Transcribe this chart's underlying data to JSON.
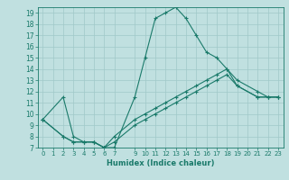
{
  "xlabel": "Humidex (Indice chaleur)",
  "bg_color": "#c0e0e0",
  "line_color": "#1a7a6a",
  "grid_color": "#a0c8c8",
  "xticks": [
    0,
    1,
    2,
    3,
    4,
    5,
    6,
    7,
    9,
    10,
    11,
    12,
    13,
    14,
    15,
    16,
    17,
    18,
    19,
    20,
    21,
    22,
    23
  ],
  "yticks": [
    7,
    8,
    9,
    10,
    11,
    12,
    13,
    14,
    15,
    16,
    17,
    18,
    19
  ],
  "xlim": [
    -0.5,
    23.5
  ],
  "ylim": [
    7,
    19.5
  ],
  "series": [
    {
      "x": [
        0,
        2,
        3,
        4,
        5,
        6,
        7,
        9,
        10,
        11,
        12,
        13,
        14,
        15,
        16,
        17,
        18,
        19,
        21,
        22,
        23
      ],
      "y": [
        9.5,
        11.5,
        8.0,
        7.5,
        7.5,
        7.0,
        7.0,
        11.5,
        15.0,
        18.5,
        19.0,
        19.5,
        18.5,
        17.0,
        15.5,
        15.0,
        14.0,
        12.5,
        11.5,
        11.5,
        11.5
      ]
    },
    {
      "x": [
        0,
        2,
        3,
        4,
        5,
        6,
        7,
        9,
        10,
        11,
        12,
        13,
        14,
        15,
        16,
        17,
        18,
        19,
        21,
        22,
        23
      ],
      "y": [
        9.5,
        8.0,
        7.5,
        7.5,
        7.5,
        7.0,
        8.0,
        9.5,
        10.0,
        10.5,
        11.0,
        11.5,
        12.0,
        12.5,
        13.0,
        13.5,
        14.0,
        13.0,
        12.0,
        11.5,
        11.5
      ]
    },
    {
      "x": [
        0,
        2,
        3,
        4,
        5,
        6,
        7,
        9,
        10,
        11,
        12,
        13,
        14,
        15,
        16,
        17,
        18,
        19,
        21,
        22,
        23
      ],
      "y": [
        9.5,
        8.0,
        7.5,
        7.5,
        7.5,
        7.0,
        7.5,
        9.0,
        9.5,
        10.0,
        10.5,
        11.0,
        11.5,
        12.0,
        12.5,
        13.0,
        13.5,
        12.5,
        11.5,
        11.5,
        11.5
      ]
    }
  ]
}
